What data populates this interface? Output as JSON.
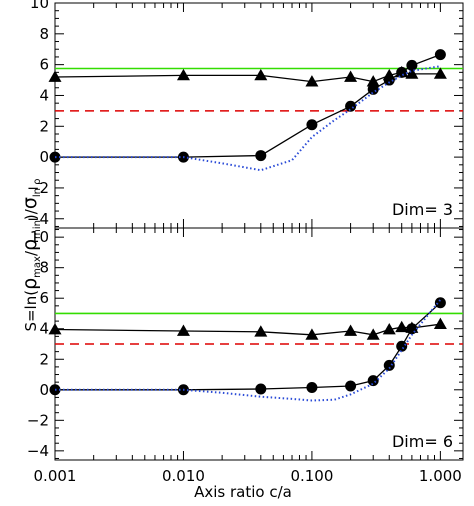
{
  "chart_data": {
    "type": "line",
    "xlabel": "Axis ratio c/a",
    "ylabel": "S=ln(ρmax/ρmin)/σln ρ",
    "ylabel_parts": {
      "prefix": "S=ln(",
      "rho": "ρ",
      "max": "max",
      "slash": "/",
      "min": "min",
      "close": ")/",
      "sigma": "σ",
      "sub": "ln ρ"
    },
    "xscale": "log",
    "xlim": [
      0.001,
      1.5
    ],
    "x_ticks": [
      0.001,
      0.01,
      0.1,
      1.0
    ],
    "x_tick_labels": [
      "0.001",
      "0.010",
      "0.100",
      "1.000"
    ],
    "panels": [
      {
        "annotation": "Dim= 3",
        "ylim": [
          -4.6,
          10
        ],
        "y_ticks": [
          -4,
          -2,
          0,
          2,
          4,
          6,
          8,
          10
        ],
        "y_tick_labels": [
          "−4",
          "−2",
          "0",
          "2",
          "4",
          "6",
          "8",
          "10"
        ],
        "hlines": [
          {
            "y": 5.75,
            "color": "#33dd00",
            "style": "solid"
          },
          {
            "y": 3.0,
            "color": "#dd0000",
            "style": "dashed"
          }
        ],
        "series": [
          {
            "marker": "triangle",
            "color": "#000000",
            "x": [
              0.001,
              0.01,
              0.04,
              0.1,
              0.2,
              0.3,
              0.4,
              0.5,
              0.6,
              1.0
            ],
            "y": [
              5.2,
              5.3,
              5.3,
              4.9,
              5.2,
              4.9,
              5.3,
              5.5,
              5.4,
              5.4
            ]
          },
          {
            "marker": "circle",
            "color": "#000000",
            "x": [
              0.001,
              0.01,
              0.04,
              0.1,
              0.2,
              0.3,
              0.4,
              0.5,
              0.6,
              1.0
            ],
            "y": [
              0.0,
              0.0,
              0.1,
              2.1,
              3.3,
              4.4,
              5.0,
              5.5,
              5.95,
              6.65
            ]
          },
          {
            "marker": "none",
            "color": "#2a4bd7",
            "style": "dotted",
            "x": [
              0.001,
              0.01,
              0.02,
              0.04,
              0.07,
              0.1,
              0.15,
              0.2,
              0.3,
              0.4,
              0.5,
              0.6,
              1.0
            ],
            "y": [
              0.0,
              0.0,
              -0.4,
              -0.85,
              -0.2,
              1.3,
              2.4,
              3.1,
              4.2,
              4.85,
              5.3,
              5.6,
              5.9
            ]
          }
        ]
      },
      {
        "annotation": "Dim= 6",
        "ylim": [
          -4.6,
          10.6
        ],
        "y_ticks": [
          -4,
          -2,
          0,
          2,
          4,
          6,
          8,
          10
        ],
        "y_tick_labels": [
          "−4",
          "−2",
          "0",
          "2",
          "4",
          "6",
          "8",
          "10"
        ],
        "hlines": [
          {
            "y": 5.0,
            "color": "#33dd00",
            "style": "solid"
          },
          {
            "y": 3.0,
            "color": "#dd0000",
            "style": "dashed"
          }
        ],
        "series": [
          {
            "marker": "triangle",
            "color": "#000000",
            "x": [
              0.001,
              0.01,
              0.04,
              0.1,
              0.2,
              0.3,
              0.4,
              0.5,
              0.6,
              1.0
            ],
            "y": [
              3.95,
              3.85,
              3.8,
              3.6,
              3.85,
              3.6,
              3.95,
              4.1,
              4.05,
              4.3
            ]
          },
          {
            "marker": "circle",
            "color": "#000000",
            "x": [
              0.001,
              0.01,
              0.04,
              0.1,
              0.2,
              0.3,
              0.4,
              0.5,
              0.6,
              1.0
            ],
            "y": [
              0.0,
              0.0,
              0.05,
              0.15,
              0.25,
              0.6,
              1.6,
              2.85,
              4.0,
              5.7
            ]
          },
          {
            "marker": "none",
            "color": "#2a4bd7",
            "style": "dotted",
            "x": [
              0.001,
              0.01,
              0.02,
              0.04,
              0.07,
              0.1,
              0.15,
              0.2,
              0.3,
              0.4,
              0.5,
              0.6,
              1.0
            ],
            "y": [
              0.0,
              0.0,
              -0.2,
              -0.45,
              -0.6,
              -0.7,
              -0.65,
              -0.3,
              0.4,
              1.4,
              2.6,
              3.6,
              5.9
            ]
          }
        ]
      }
    ]
  }
}
